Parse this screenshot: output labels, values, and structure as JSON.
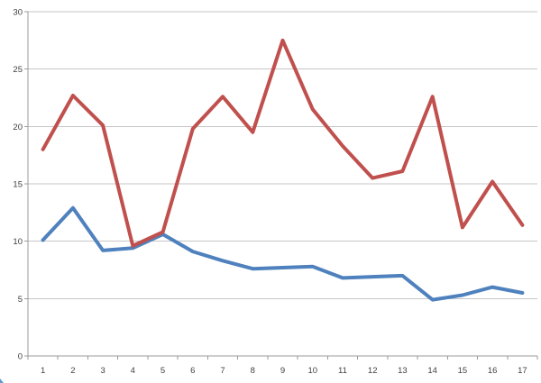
{
  "page": {
    "background": "#ffffff"
  },
  "artifact": {
    "description": "tiny cropped blue fragment at bottom-left screen edge",
    "color": "#5b9bd5"
  },
  "chart_data": {
    "type": "line",
    "title": "",
    "xlabel": "",
    "ylabel": "",
    "categories": [
      "1",
      "2",
      "3",
      "4",
      "5",
      "6",
      "7",
      "8",
      "9",
      "10",
      "11",
      "12",
      "13",
      "14",
      "15",
      "16",
      "17"
    ],
    "series": [
      {
        "name": "series-blue",
        "color": "#4E81BD",
        "values": [
          10.1,
          12.9,
          9.2,
          9.4,
          10.6,
          9.1,
          8.3,
          7.6,
          7.7,
          7.8,
          6.8,
          6.9,
          7.0,
          4.9,
          5.3,
          6.0,
          5.5
        ]
      },
      {
        "name": "series-red",
        "color": "#C0504D",
        "values": [
          18.0,
          22.7,
          20.1,
          9.6,
          10.8,
          19.8,
          22.6,
          19.5,
          27.5,
          21.5,
          18.3,
          15.5,
          16.1,
          22.6,
          11.2,
          15.2,
          11.4
        ]
      }
    ],
    "ylim": [
      0,
      30
    ],
    "ytick_step": 5,
    "y_tick_labels": [
      "0",
      "5",
      "10",
      "15",
      "20",
      "25",
      "30"
    ],
    "grid": "horizontal",
    "legend": "none",
    "axis_color": "#9b9b9b",
    "gridline_color": "#c6c6c6",
    "label_color": "#404040",
    "line_width": 4
  }
}
